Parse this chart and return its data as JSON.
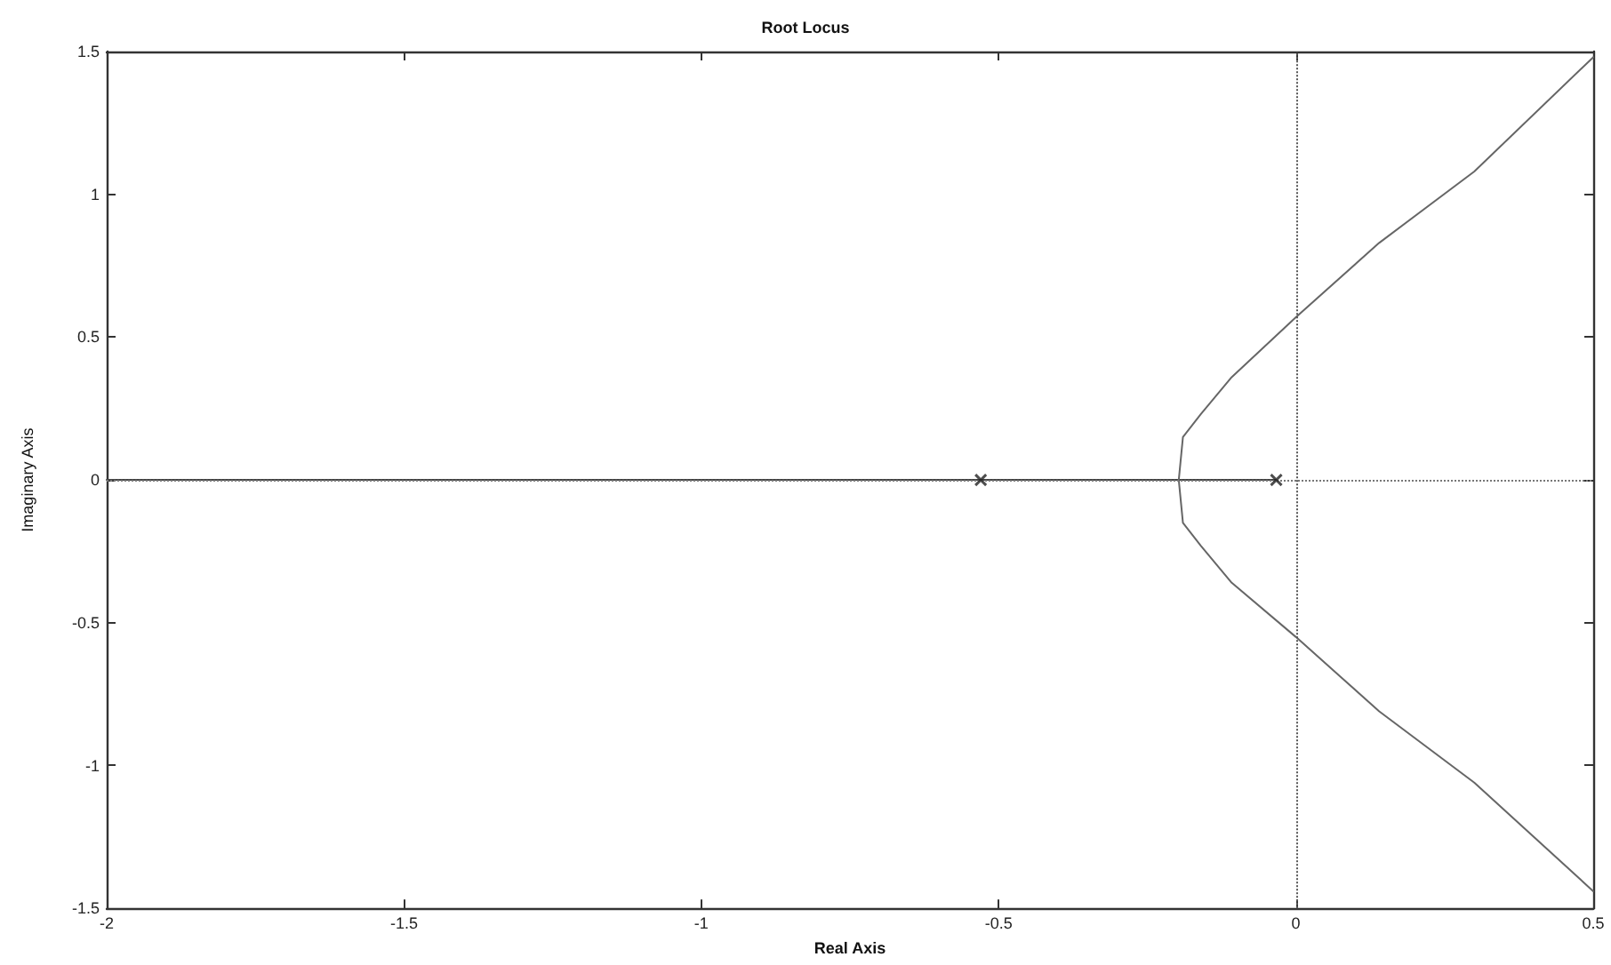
{
  "chart_data": {
    "type": "line",
    "title": "Root Locus",
    "xlabel": "Real Axis",
    "ylabel": "Imaginary Axis",
    "xlim": [
      -2,
      0.5
    ],
    "xticks": [
      -2,
      -1.5,
      -1,
      -0.5,
      0,
      0.5
    ],
    "ylim": [
      -1.5,
      1.5
    ],
    "yticks": [
      -1.5,
      -1,
      -0.5,
      0,
      0.5,
      1,
      1.5
    ],
    "grid": false,
    "line_style": "solid",
    "series": [
      {
        "color": "#444444",
        "x": [
          -2,
          -0.53,
          -0.197,
          -0.033
        ],
        "values": [
          0,
          0,
          0,
          0
        ]
      },
      {
        "color": "#666666",
        "x": [
          0.5,
          0.3,
          0.14,
          0,
          -0.108,
          -0.16,
          -0.19,
          -0.197,
          -0.19,
          -0.16,
          -0.108,
          0,
          0.14,
          0.3,
          0.5
        ],
        "values": [
          -1.44,
          -1.06,
          -0.81,
          -0.55,
          -0.36,
          -0.23,
          -0.15,
          0,
          0.15,
          0.23,
          0.36,
          0.57,
          0.83,
          1.08,
          1.48
        ]
      },
      {
        "type": "scatter",
        "marker": "cross",
        "color": "#222222",
        "x": [
          -0.53,
          -0.033
        ],
        "values": [
          0,
          0
        ]
      }
    ],
    "ref_lines": [
      {
        "axis": "x",
        "value": 0,
        "line_style": "dotted",
        "color": "#555555"
      },
      {
        "axis": "y",
        "value": 0,
        "line_style": "dotted",
        "color": "#777777"
      }
    ]
  }
}
